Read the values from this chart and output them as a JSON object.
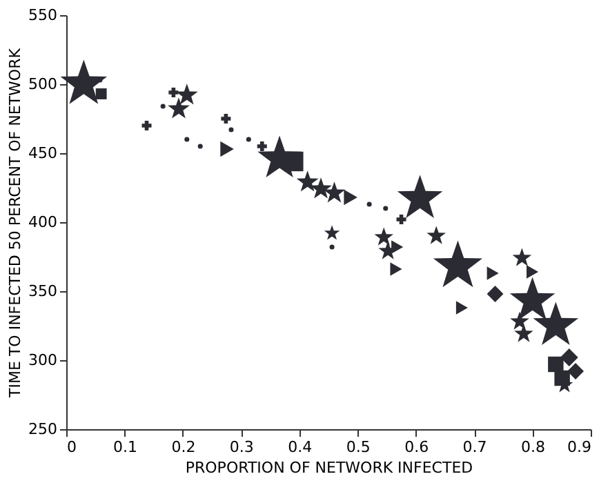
{
  "chart_data": {
    "type": "bubble",
    "xlabel": "PROPORTION OF NETWORK INFECTED",
    "ylabel": "TIME TO INFECTED 50 PERCENT OF NETWORK",
    "xlim": [
      0,
      0.9
    ],
    "ylim": [
      250,
      550
    ],
    "xticks": [
      0,
      0.1,
      0.2,
      0.3,
      0.4,
      0.5,
      0.6,
      0.7,
      0.8,
      0.9
    ],
    "yticks": [
      250,
      300,
      350,
      400,
      450,
      500,
      550
    ],
    "grid": false,
    "series": [
      {
        "marker": "square",
        "color": "#2b2b33",
        "x": [
          0.06,
          0.39,
          0.84,
          0.851
        ],
        "values": [
          493,
          444,
          297,
          287
        ],
        "sizes": [
          0.15,
          0.48,
          0.3,
          0.3
        ]
      },
      {
        "marker": "diamond",
        "color": "#2b2b33",
        "x": [
          0.736,
          0.874,
          0.863
        ],
        "values": [
          348,
          292,
          302
        ],
        "sizes": [
          0.17,
          0.17,
          0.2
        ]
      },
      {
        "marker": "triangle",
        "color": "#2b2b33",
        "x": [
          0.276,
          0.488,
          0.568,
          0.566,
          0.732,
          0.679,
          0.8
        ],
        "values": [
          453,
          418,
          382,
          366,
          363,
          338,
          364
        ],
        "sizes": [
          0.13,
          0.13,
          0.1,
          0.1,
          0.1,
          0.1,
          0.1
        ]
      },
      {
        "marker": "cross",
        "color": "#2b2b33",
        "x": [
          0.184,
          0.138,
          0.274,
          0.336,
          0.575
        ],
        "values": [
          494,
          470,
          475,
          455,
          402
        ],
        "sizes": [
          0.075,
          0.075,
          0.075,
          0.075,
          0.075
        ]
      },
      {
        "marker": "star",
        "color": "#2b2b33",
        "x": [
          0.03,
          0.366,
          0.607,
          0.672,
          0.8,
          0.84,
          0.855,
          0.207,
          0.193,
          0.414,
          0.437,
          0.46,
          0.545,
          0.552,
          0.635,
          0.782,
          0.778,
          0.785,
          0.456
        ],
        "values": [
          500,
          446,
          417,
          368,
          343,
          325,
          282,
          492,
          482,
          429,
          424,
          421,
          389,
          379,
          390,
          374,
          328,
          319,
          392
        ],
        "sizes": [
          0.9,
          0.8,
          0.85,
          1,
          0.85,
          0.85,
          0.12,
          0.2,
          0.2,
          0.2,
          0.2,
          0.2,
          0.15,
          0.15,
          0.15,
          0.15,
          0.15,
          0.15,
          0.1
        ]
      },
      {
        "marker": "circle",
        "color": "#2b2b33",
        "x": [
          0.058,
          0.166,
          0.207,
          0.23,
          0.283,
          0.313,
          0.52,
          0.548,
          0.456
        ],
        "values": [
          503,
          484,
          460,
          455,
          467,
          460,
          413,
          410,
          382
        ],
        "sizes": [
          0.03,
          0.03,
          0.03,
          0.03,
          0.03,
          0.03,
          0.03,
          0.03,
          0.03
        ]
      }
    ]
  }
}
